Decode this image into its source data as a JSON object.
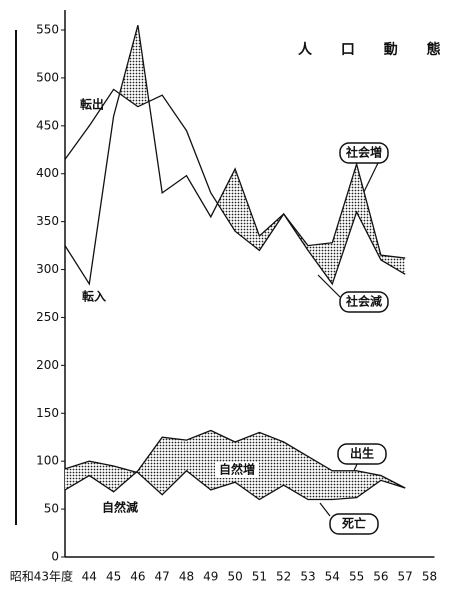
{
  "chart_data": {
    "type": "line",
    "title": "人 口 動 態",
    "categories": [
      "昭和43年度",
      "44",
      "45",
      "46",
      "47",
      "48",
      "49",
      "50",
      "51",
      "52",
      "53",
      "54",
      "55",
      "56",
      "57",
      "58"
    ],
    "series": [
      {
        "name": "転出",
        "color": "#111111",
        "values": [
          415,
          450,
          488,
          470,
          482,
          445,
          380,
          340,
          320,
          358,
          320,
          285,
          360,
          310,
          295,
          null
        ]
      },
      {
        "name": "転入",
        "color": "#111111",
        "values": [
          325,
          285,
          460,
          555,
          380,
          398,
          355,
          405,
          335,
          358,
          325,
          328,
          410,
          315,
          312,
          null
        ]
      },
      {
        "name": "出生",
        "color": "#111111",
        "values": [
          70,
          85,
          68,
          90,
          125,
          122,
          132,
          120,
          130,
          120,
          105,
          90,
          90,
          85,
          72,
          null
        ]
      },
      {
        "name": "死亡",
        "color": "#111111",
        "values": [
          92,
          100,
          95,
          88,
          65,
          90,
          70,
          78,
          60,
          75,
          60,
          60,
          62,
          80,
          72,
          null
        ]
      }
    ],
    "annotations": [
      "社会増",
      "社会減",
      "自然増",
      "自然減"
    ],
    "ylim": [
      0,
      560
    ],
    "yticks": [
      0,
      50,
      100,
      150,
      200,
      250,
      300,
      350,
      400,
      450,
      500,
      550
    ]
  }
}
